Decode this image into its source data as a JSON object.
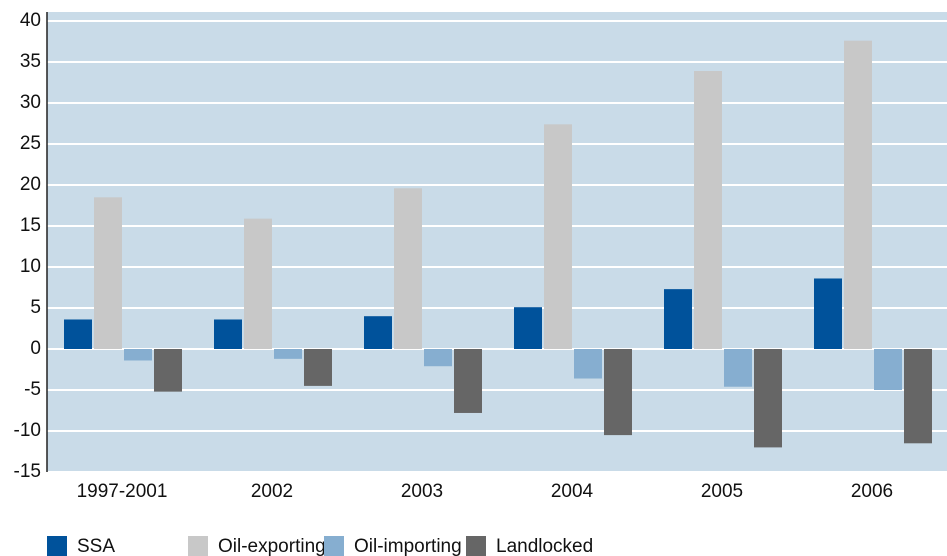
{
  "chart_data": {
    "type": "bar",
    "categories": [
      "1997-2001",
      "2002",
      "2003",
      "2004",
      "2005",
      "2006"
    ],
    "series": [
      {
        "name": "SSA",
        "color": "#00529b",
        "values": [
          3.6,
          3.6,
          4.0,
          5.1,
          7.3,
          8.6
        ]
      },
      {
        "name": "Oil-exporting",
        "color": "#c8c8c8",
        "values": [
          18.5,
          15.9,
          19.6,
          27.4,
          33.9,
          37.6
        ]
      },
      {
        "name": "Oil-importing",
        "color": "#86aed0",
        "values": [
          -1.4,
          -1.2,
          -2.1,
          -3.6,
          -4.6,
          -5.0
        ]
      },
      {
        "name": "Landlocked",
        "color": "#666666",
        "values": [
          -5.2,
          -4.5,
          -7.8,
          -10.5,
          -12.0,
          -11.5
        ]
      }
    ],
    "ylim": [
      -15,
      40
    ],
    "yticks": [
      -15,
      -10,
      -5,
      0,
      5,
      10,
      15,
      20,
      25,
      30,
      35,
      40
    ],
    "grid": true,
    "legend": "bottom"
  }
}
